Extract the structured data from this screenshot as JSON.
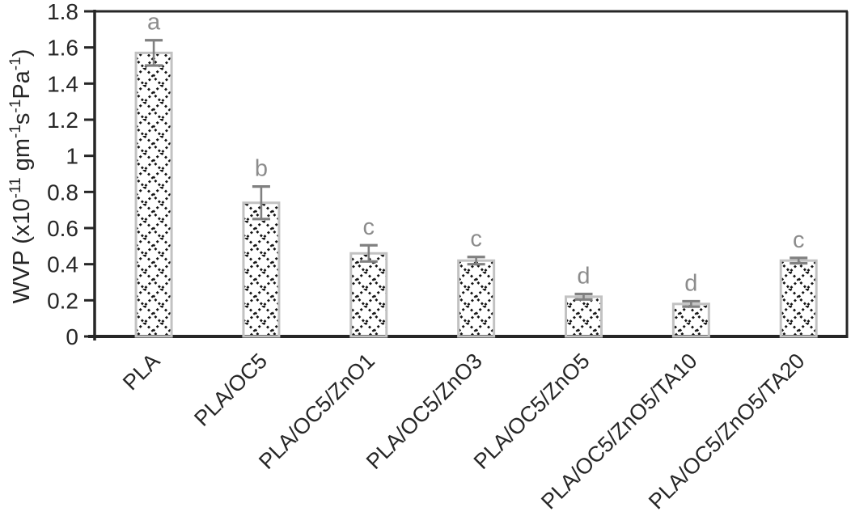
{
  "chart_data": {
    "type": "bar",
    "title": "",
    "ylabel_plain": "WVP (x10-11 gm-1s-1Pa-1)",
    "ylabel_parts": [
      {
        "text": "WVP (x10",
        "sup": false
      },
      {
        "text": "-11",
        "sup": true
      },
      {
        "text": " gm",
        "sup": false
      },
      {
        "text": "-1",
        "sup": true
      },
      {
        "text": "s",
        "sup": false
      },
      {
        "text": "-1",
        "sup": true
      },
      {
        "text": "Pa",
        "sup": false
      },
      {
        "text": "-1",
        "sup": true
      },
      {
        "text": ")",
        "sup": false
      }
    ],
    "categories": [
      "PLA",
      "PLA/OC5",
      "PLA/OC5/ZnO1",
      "PLA/OC5/ZnO3",
      "PLA/OC5/ZnO5",
      "PLA/OC5/ZnO5/TA10",
      "PLA/OC5/ZnO5/TA20"
    ],
    "values": [
      1.57,
      0.74,
      0.46,
      0.42,
      0.22,
      0.18,
      0.42
    ],
    "errors": [
      0.07,
      0.09,
      0.045,
      0.02,
      0.015,
      0.015,
      0.015
    ],
    "sig_letters": [
      "a",
      "b",
      "c",
      "c",
      "d",
      "d",
      "c"
    ],
    "xlabel": "",
    "ylim": [
      0,
      1.8
    ],
    "ytick_labels": [
      "0",
      "0.2",
      "0.4",
      "0.6",
      "0.8",
      "1",
      "1.2",
      "1.4",
      "1.6",
      "1.8"
    ],
    "x_label_rotation_deg": -45,
    "grid": "off",
    "legend": "none",
    "bar_fill_pattern": "dotted-diagonal-crosshatch",
    "colors": {
      "background": "#ffffff",
      "axis": "#262626",
      "tick_text": "#262626",
      "category_text": "#262626",
      "sig_letters": "#8c8c8c",
      "error_bars": "#808080",
      "bar_border": "#c2c2c2",
      "pattern": "#141414"
    }
  }
}
